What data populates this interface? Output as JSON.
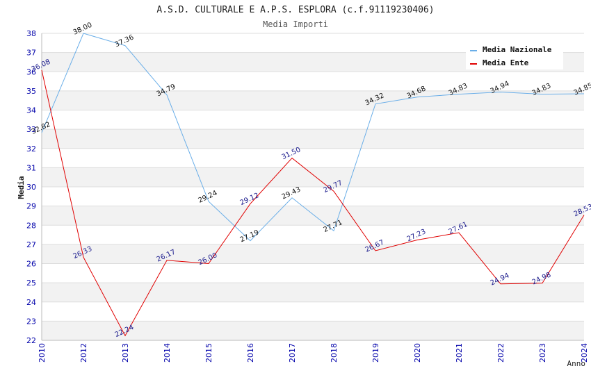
{
  "chart_data": {
    "type": "line",
    "title": "A.S.D. CULTURALE E A.P.S. ESPLORA (c.f.91119230406)",
    "subtitle": "Media Importi",
    "xlabel": "Anno",
    "ylabel": "Media",
    "ylim": [
      22,
      38
    ],
    "yticks": [
      22,
      23,
      24,
      25,
      26,
      27,
      28,
      29,
      30,
      31,
      32,
      33,
      34,
      35,
      36,
      37,
      38
    ],
    "x": [
      "2010",
      "2012",
      "2013",
      "2014",
      "2015",
      "2016",
      "2017",
      "2018",
      "2019",
      "2020",
      "2021",
      "2022",
      "2023",
      "2024"
    ],
    "series": [
      {
        "name": "Media Nazionale",
        "color": "#6aaee8",
        "values": [
          32.82,
          38.0,
          37.36,
          34.79,
          29.24,
          27.19,
          29.43,
          27.71,
          34.32,
          34.68,
          34.83,
          34.94,
          34.83,
          34.85
        ],
        "labels": [
          "32.82",
          "38.00",
          "37.36",
          "34.79",
          "29.24",
          "27.19",
          "29.43",
          "27.71",
          "34.32",
          "34.68",
          "34.83",
          "34.94",
          "34.83",
          "34.85"
        ]
      },
      {
        "name": "Media Ente",
        "color": "#e00000",
        "values": [
          36.08,
          26.33,
          22.24,
          26.17,
          26.0,
          29.12,
          31.5,
          29.77,
          26.67,
          27.23,
          27.61,
          24.94,
          24.98,
          28.53
        ],
        "labels": [
          "36.08",
          "26.33",
          "22.24",
          "26.17",
          "26.00",
          "29.12",
          "31.50",
          "29.77",
          "26.67",
          "27.23",
          "27.61",
          "24.94",
          "24.98",
          "28.53"
        ]
      }
    ],
    "grid": true,
    "legend": "top-right"
  }
}
